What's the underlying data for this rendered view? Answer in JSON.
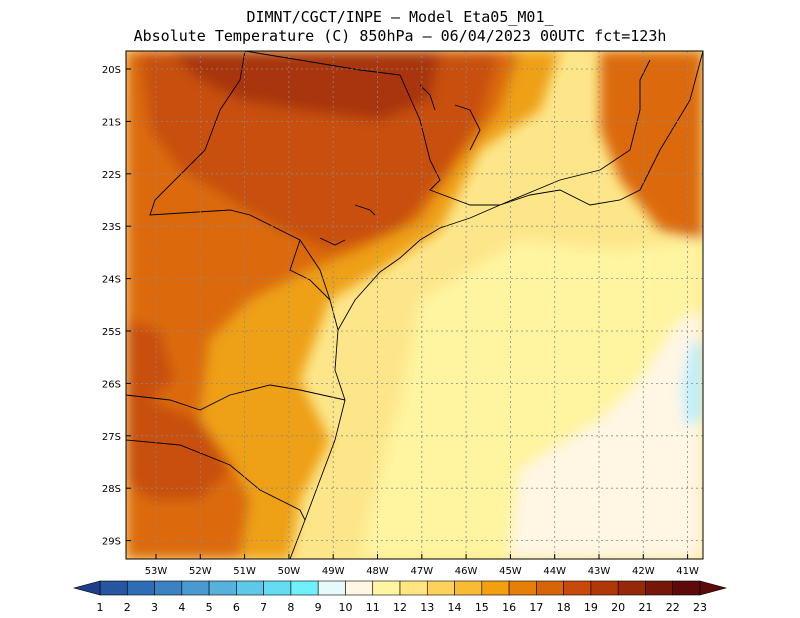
{
  "header": {
    "line1": "DIMNT/CGCT/INPE —  Model Eta05_M01_",
    "line2": "Absolute Temperature (C) 850hPa —  06/04/2023 00UTC fct=123h"
  },
  "axes": {
    "lat_labels": [
      "20S",
      "21S",
      "22S",
      "23S",
      "24S",
      "25S",
      "26S",
      "27S",
      "28S",
      "29S"
    ],
    "lon_labels": [
      "53W",
      "52W",
      "51W",
      "50W",
      "49W",
      "48W",
      "47W",
      "46W",
      "45W",
      "44W",
      "43W",
      "42W",
      "41W"
    ]
  },
  "colorbar": {
    "labels": [
      "1",
      "2",
      "3",
      "4",
      "5",
      "6",
      "7",
      "8",
      "9",
      "10",
      "11",
      "12",
      "13",
      "14",
      "15",
      "16",
      "17",
      "18",
      "19",
      "20",
      "21",
      "22",
      "23"
    ],
    "colors": [
      "#1c3f8c",
      "#2656a0",
      "#2e6cb4",
      "#3c82c2",
      "#4a9ad0",
      "#56b2dc",
      "#5ec8e8",
      "#66dcf2",
      "#70f0fa",
      "#e6fafc",
      "#fff6e4",
      "#fff4a0",
      "#ffe680",
      "#fcd25a",
      "#f8bc34",
      "#f2a010",
      "#e67f08",
      "#d86408",
      "#c84a0a",
      "#b03808",
      "#942808",
      "#761808",
      "#5c0a0a"
    ]
  },
  "map": {
    "fields": {
      "background": "#fde68a",
      "hot_core": "#a8340a",
      "very_warm": "#c8500c",
      "warm": "#dc6a0c",
      "mid": "#eea018",
      "light": "#fcd25a",
      "pale": "#fff4a0",
      "cream": "#fff6e4",
      "cold_patch": "#bdefff"
    }
  }
}
